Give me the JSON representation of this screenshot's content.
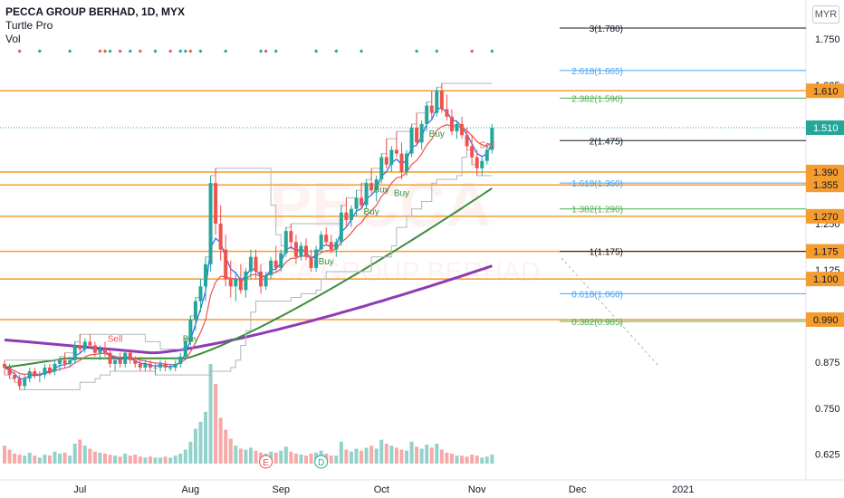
{
  "legend": {
    "symbol": "PECCA GROUP BERHAD, 1D, MYX",
    "indicator1": "Turtle Pro",
    "indicator2": "Vol"
  },
  "axis": {
    "currency": "MYR"
  },
  "watermark": {
    "ticker": "PECCA",
    "name": "PECCA GROUP BERHAD"
  },
  "colors": {
    "up": "#26a69a",
    "down": "#ef5350",
    "level": "#f59c2f",
    "ema_fast": "#2962ff",
    "ema_mid": "#ef5350",
    "ema_slow": "#388e3c",
    "ema_long": "#8e3bb4",
    "current_badge": "#26a69a",
    "fib_blue": "#42a5f5",
    "fib_green": "#4caf50",
    "fib_black": "#131722"
  },
  "chart_data": {
    "type": "candlestick",
    "y_range": [
      0.56,
      1.8
    ],
    "y_ticks": [
      "1.750",
      "1.625",
      "1.250",
      "1.125",
      "0.875",
      "0.750",
      "0.625"
    ],
    "x_ticks": [
      {
        "label": "Jul",
        "index": 15
      },
      {
        "label": "Aug",
        "index": 37
      },
      {
        "label": "Sep",
        "index": 55
      },
      {
        "label": "Oct",
        "index": 75
      },
      {
        "label": "Nov",
        "index": 94
      },
      {
        "label": "Dec",
        "index": 114
      },
      {
        "label": "2021",
        "index": 135
      }
    ],
    "price_levels": [
      {
        "label": "1.610",
        "value": 1.61
      },
      {
        "label": "1.390",
        "value": 1.39
      },
      {
        "label": "1.355",
        "value": 1.355
      },
      {
        "label": "1.270",
        "value": 1.27
      },
      {
        "label": "1.175",
        "value": 1.175
      },
      {
        "label": "1.100",
        "value": 1.1
      },
      {
        "label": "0.990",
        "value": 0.99
      }
    ],
    "current_price": {
      "label": "1.510",
      "value": 1.51
    },
    "fib_levels": [
      {
        "label": "3(1.780)",
        "value": 1.78,
        "color": "fib_black"
      },
      {
        "label": "2.618(1.665)",
        "value": 1.665,
        "color": "fib_blue"
      },
      {
        "label": "2.382(1.590)",
        "value": 1.59,
        "color": "fib_green"
      },
      {
        "label": "2(1.475)",
        "value": 1.475,
        "color": "fib_black"
      },
      {
        "label": "1.618(1.360)",
        "value": 1.36,
        "color": "fib_blue"
      },
      {
        "label": "1.382(1.290)",
        "value": 1.29,
        "color": "fib_green"
      },
      {
        "label": "1(1.175)",
        "value": 1.175,
        "color": "fib_black"
      },
      {
        "label": "0.618(1.060)",
        "value": 1.06,
        "color": "fib_blue"
      },
      {
        "label": "0.382(0.985)",
        "value": 0.985,
        "color": "fib_green"
      }
    ],
    "signals": [
      {
        "label": "Sell",
        "index": 22,
        "value": 0.93
      },
      {
        "label": "Buy",
        "index": 37,
        "value": 0.93
      },
      {
        "label": "Buy",
        "index": 64,
        "value": 1.14
      },
      {
        "label": "Buy",
        "index": 73,
        "value": 1.275
      },
      {
        "label": "Buy",
        "index": 75,
        "value": 1.335
      },
      {
        "label": "Buy",
        "index": 79,
        "value": 1.325
      },
      {
        "label": "Buy",
        "index": 86,
        "value": 1.485
      },
      {
        "label": "Sell",
        "index": 96,
        "value": 1.455
      }
    ],
    "volume_markers": [
      {
        "label": "E",
        "index": 52
      },
      {
        "label": "D",
        "index": 63
      }
    ],
    "dot_markers": [
      {
        "index": 3,
        "color": "down"
      },
      {
        "index": 7,
        "color": "up"
      },
      {
        "index": 13,
        "color": "up"
      },
      {
        "index": 19,
        "color": "down"
      },
      {
        "index": 20,
        "color": "down"
      },
      {
        "index": 21,
        "color": "up"
      },
      {
        "index": 23,
        "color": "down"
      },
      {
        "index": 25,
        "color": "up"
      },
      {
        "index": 27,
        "color": "down"
      },
      {
        "index": 30,
        "color": "up"
      },
      {
        "index": 33,
        "color": "down"
      },
      {
        "index": 35,
        "color": "up"
      },
      {
        "index": 36,
        "color": "up"
      },
      {
        "index": 37,
        "color": "down"
      },
      {
        "index": 39,
        "color": "up"
      },
      {
        "index": 44,
        "color": "up"
      },
      {
        "index": 51,
        "color": "up"
      },
      {
        "index": 52,
        "color": "down"
      },
      {
        "index": 54,
        "color": "up"
      },
      {
        "index": 62,
        "color": "up"
      },
      {
        "index": 66,
        "color": "up"
      },
      {
        "index": 71,
        "color": "up"
      },
      {
        "index": 82,
        "color": "up"
      },
      {
        "index": 86,
        "color": "up"
      },
      {
        "index": 93,
        "color": "down"
      },
      {
        "index": 97,
        "color": "up"
      }
    ],
    "candles": [
      [
        0.87,
        0.88,
        0.84,
        0.86,
        18
      ],
      [
        0.86,
        0.87,
        0.83,
        0.84,
        14
      ],
      [
        0.84,
        0.85,
        0.82,
        0.83,
        10
      ],
      [
        0.83,
        0.84,
        0.8,
        0.81,
        9
      ],
      [
        0.81,
        0.84,
        0.8,
        0.83,
        8
      ],
      [
        0.83,
        0.86,
        0.82,
        0.85,
        11
      ],
      [
        0.85,
        0.86,
        0.83,
        0.84,
        8
      ],
      [
        0.84,
        0.85,
        0.82,
        0.84,
        6
      ],
      [
        0.84,
        0.87,
        0.83,
        0.86,
        9
      ],
      [
        0.86,
        0.87,
        0.84,
        0.85,
        8
      ],
      [
        0.85,
        0.88,
        0.84,
        0.87,
        12
      ],
      [
        0.87,
        0.89,
        0.85,
        0.88,
        10
      ],
      [
        0.88,
        0.9,
        0.86,
        0.87,
        11
      ],
      [
        0.87,
        0.89,
        0.86,
        0.88,
        8
      ],
      [
        0.88,
        0.93,
        0.87,
        0.92,
        20
      ],
      [
        0.92,
        0.95,
        0.9,
        0.91,
        24
      ],
      [
        0.91,
        0.94,
        0.9,
        0.93,
        18
      ],
      [
        0.93,
        0.95,
        0.91,
        0.92,
        15
      ],
      [
        0.92,
        0.93,
        0.89,
        0.9,
        12
      ],
      [
        0.9,
        0.92,
        0.88,
        0.91,
        11
      ],
      [
        0.91,
        0.93,
        0.89,
        0.9,
        10
      ],
      [
        0.9,
        0.91,
        0.86,
        0.87,
        9
      ],
      [
        0.87,
        0.89,
        0.85,
        0.88,
        8
      ],
      [
        0.88,
        0.9,
        0.86,
        0.87,
        7
      ],
      [
        0.87,
        0.91,
        0.86,
        0.9,
        10
      ],
      [
        0.9,
        0.91,
        0.87,
        0.88,
        8
      ],
      [
        0.88,
        0.89,
        0.86,
        0.87,
        9
      ],
      [
        0.87,
        0.89,
        0.85,
        0.86,
        7
      ],
      [
        0.86,
        0.88,
        0.85,
        0.87,
        6
      ],
      [
        0.87,
        0.88,
        0.85,
        0.86,
        7
      ],
      [
        0.86,
        0.87,
        0.84,
        0.86,
        6
      ],
      [
        0.86,
        0.88,
        0.85,
        0.87,
        6
      ],
      [
        0.87,
        0.88,
        0.85,
        0.86,
        7
      ],
      [
        0.86,
        0.87,
        0.85,
        0.86,
        6
      ],
      [
        0.86,
        0.88,
        0.85,
        0.87,
        8
      ],
      [
        0.87,
        0.9,
        0.86,
        0.89,
        10
      ],
      [
        0.89,
        0.94,
        0.88,
        0.93,
        14
      ],
      [
        0.93,
        1.0,
        0.92,
        0.99,
        22
      ],
      [
        0.99,
        1.05,
        0.96,
        1.04,
        35
      ],
      [
        1.04,
        1.1,
        1.01,
        1.08,
        42
      ],
      [
        1.08,
        1.16,
        1.04,
        1.14,
        52
      ],
      [
        1.14,
        1.38,
        1.12,
        1.36,
        100
      ],
      [
        1.36,
        1.4,
        1.22,
        1.25,
        80
      ],
      [
        1.25,
        1.3,
        1.15,
        1.18,
        46
      ],
      [
        1.18,
        1.22,
        1.08,
        1.1,
        34
      ],
      [
        1.1,
        1.15,
        1.05,
        1.08,
        25
      ],
      [
        1.08,
        1.12,
        1.04,
        1.1,
        18
      ],
      [
        1.1,
        1.14,
        1.06,
        1.07,
        15
      ],
      [
        1.07,
        1.13,
        1.05,
        1.12,
        14
      ],
      [
        1.12,
        1.18,
        1.1,
        1.16,
        16
      ],
      [
        1.16,
        1.18,
        1.1,
        1.12,
        13
      ],
      [
        1.12,
        1.14,
        1.06,
        1.08,
        11
      ],
      [
        1.08,
        1.12,
        1.07,
        1.11,
        10
      ],
      [
        1.11,
        1.16,
        1.1,
        1.15,
        12
      ],
      [
        1.15,
        1.19,
        1.12,
        1.13,
        11
      ],
      [
        1.13,
        1.18,
        1.12,
        1.17,
        13
      ],
      [
        1.17,
        1.24,
        1.16,
        1.23,
        17
      ],
      [
        1.23,
        1.25,
        1.18,
        1.2,
        12
      ],
      [
        1.2,
        1.22,
        1.14,
        1.16,
        10
      ],
      [
        1.16,
        1.2,
        1.15,
        1.19,
        9
      ],
      [
        1.19,
        1.21,
        1.15,
        1.16,
        8
      ],
      [
        1.16,
        1.18,
        1.12,
        1.13,
        10
      ],
      [
        1.13,
        1.19,
        1.12,
        1.18,
        11
      ],
      [
        1.18,
        1.23,
        1.17,
        1.22,
        13
      ],
      [
        1.22,
        1.24,
        1.19,
        1.2,
        10
      ],
      [
        1.2,
        1.22,
        1.17,
        1.18,
        8
      ],
      [
        1.18,
        1.21,
        1.16,
        1.2,
        8
      ],
      [
        1.2,
        1.3,
        1.19,
        1.28,
        22
      ],
      [
        1.28,
        1.32,
        1.24,
        1.26,
        14
      ],
      [
        1.26,
        1.3,
        1.24,
        1.29,
        12
      ],
      [
        1.29,
        1.34,
        1.27,
        1.32,
        15
      ],
      [
        1.32,
        1.36,
        1.29,
        1.3,
        13
      ],
      [
        1.3,
        1.37,
        1.29,
        1.36,
        16
      ],
      [
        1.36,
        1.4,
        1.33,
        1.34,
        18
      ],
      [
        1.34,
        1.38,
        1.31,
        1.37,
        15
      ],
      [
        1.37,
        1.44,
        1.36,
        1.43,
        24
      ],
      [
        1.43,
        1.48,
        1.4,
        1.41,
        20
      ],
      [
        1.41,
        1.46,
        1.39,
        1.45,
        18
      ],
      [
        1.45,
        1.5,
        1.43,
        1.44,
        16
      ],
      [
        1.44,
        1.47,
        1.37,
        1.39,
        14
      ],
      [
        1.39,
        1.45,
        1.38,
        1.44,
        13
      ],
      [
        1.44,
        1.52,
        1.43,
        1.51,
        22
      ],
      [
        1.51,
        1.55,
        1.46,
        1.47,
        17
      ],
      [
        1.47,
        1.53,
        1.45,
        1.52,
        15
      ],
      [
        1.52,
        1.58,
        1.5,
        1.57,
        19
      ],
      [
        1.57,
        1.61,
        1.53,
        1.55,
        16
      ],
      [
        1.55,
        1.62,
        1.54,
        1.61,
        20
      ],
      [
        1.61,
        1.63,
        1.55,
        1.56,
        14
      ],
      [
        1.56,
        1.6,
        1.53,
        1.54,
        11
      ],
      [
        1.54,
        1.56,
        1.49,
        1.5,
        10
      ],
      [
        1.5,
        1.53,
        1.48,
        1.52,
        8
      ],
      [
        1.52,
        1.54,
        1.48,
        1.49,
        8
      ],
      [
        1.49,
        1.51,
        1.45,
        1.46,
        7
      ],
      [
        1.46,
        1.49,
        1.41,
        1.43,
        9
      ],
      [
        1.43,
        1.45,
        1.38,
        1.4,
        8
      ],
      [
        1.4,
        1.43,
        1.38,
        1.42,
        6
      ],
      [
        1.42,
        1.47,
        1.41,
        1.45,
        7
      ],
      [
        1.45,
        1.52,
        1.44,
        1.51,
        9
      ]
    ]
  }
}
